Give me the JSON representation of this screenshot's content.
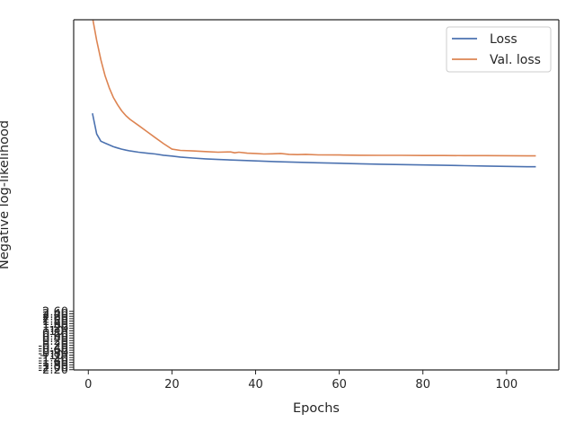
{
  "chart_data": {
    "type": "line",
    "xlabel": "Epochs",
    "ylabel": "Negative log-likelihood",
    "xlim": [
      -3.5,
      112.5
    ],
    "ylim": [
      -2.22,
      26.6
    ],
    "xticks": [
      0,
      20,
      40,
      60,
      80,
      100
    ],
    "ytick_labels": [
      "-2.20",
      "-2.00",
      "-1.80",
      "-1.60",
      "-1.40",
      "-1.20",
      "−10⁰",
      "-0.80",
      "-0.60",
      "-0.40",
      "-0.20",
      "0",
      "0.20",
      "0.40",
      "0.60",
      "0.80",
      "10⁰",
      "1.20",
      "1.40",
      "1.60",
      "1.80",
      "2.00",
      "2.20",
      "2.40",
      "2.60"
    ],
    "ytick_values": [
      -2.2,
      -2.0,
      -1.8,
      -1.6,
      -1.4,
      -1.2,
      -1.0,
      -0.8,
      -0.6,
      -0.4,
      -0.2,
      0,
      0.2,
      0.4,
      0.6,
      0.8,
      1.0,
      1.2,
      1.4,
      1.6,
      1.8,
      2.0,
      2.2,
      2.4,
      2.6
    ],
    "legend_position": "top-right",
    "grid": false,
    "series": [
      {
        "name": "Loss",
        "color": "#4c72b0",
        "x": [
          1,
          2,
          3,
          4,
          5,
          6,
          7,
          8,
          9,
          10,
          12,
          14,
          16,
          18,
          20,
          22,
          25,
          28,
          31,
          35,
          40,
          45,
          50,
          55,
          60,
          65,
          70,
          75,
          80,
          85,
          90,
          95,
          100,
          105,
          107
        ],
        "y": [
          18.9,
          17.2,
          16.6,
          16.45,
          16.3,
          16.15,
          16.05,
          15.95,
          15.87,
          15.8,
          15.7,
          15.62,
          15.55,
          15.45,
          15.38,
          15.3,
          15.22,
          15.15,
          15.1,
          15.05,
          14.98,
          14.92,
          14.87,
          14.83,
          14.79,
          14.75,
          14.71,
          14.68,
          14.65,
          14.62,
          14.59,
          14.56,
          14.53,
          14.5,
          14.5
        ]
      },
      {
        "name": "Val. loss",
        "color": "#dd8452",
        "x": [
          1,
          2,
          3,
          4,
          5,
          6,
          7,
          8,
          9,
          10,
          12,
          14,
          16,
          18,
          20,
          22,
          25,
          28,
          31,
          34,
          35,
          36,
          38,
          40,
          42,
          44,
          46,
          48,
          50,
          52,
          55,
          60,
          65,
          70,
          75,
          80,
          85,
          90,
          95,
          100,
          105,
          107
        ],
        "y": [
          26.8,
          24.9,
          23.3,
          22.0,
          21.0,
          20.2,
          19.6,
          19.1,
          18.7,
          18.4,
          17.9,
          17.4,
          16.9,
          16.4,
          15.95,
          15.85,
          15.8,
          15.75,
          15.7,
          15.72,
          15.65,
          15.7,
          15.62,
          15.6,
          15.55,
          15.57,
          15.6,
          15.52,
          15.5,
          15.52,
          15.48,
          15.47,
          15.45,
          15.44,
          15.44,
          15.43,
          15.43,
          15.42,
          15.42,
          15.41,
          15.4,
          15.4
        ]
      }
    ]
  }
}
